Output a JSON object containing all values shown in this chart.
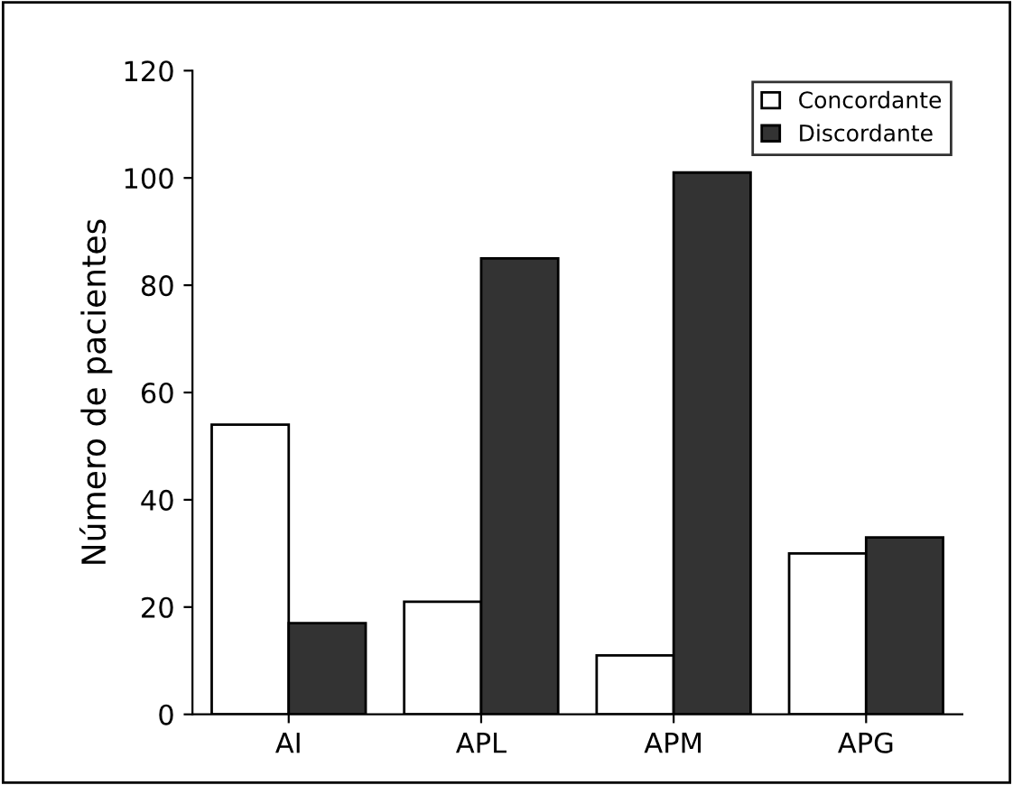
{
  "chart_data": {
    "type": "bar",
    "ylabel": "Número de pacientes",
    "categories": [
      "AI",
      "APL",
      "APM",
      "APG"
    ],
    "series": [
      {
        "name": "Concordante",
        "color": "#ffffff",
        "values": [
          54,
          21,
          11,
          30
        ]
      },
      {
        "name": "Discordante",
        "color": "#333333",
        "values": [
          17,
          85,
          101,
          33
        ]
      }
    ],
    "ylim": [
      0,
      120
    ],
    "yticks": [
      0,
      20,
      40,
      60,
      80,
      100,
      120
    ],
    "grid": false,
    "legend": "top right"
  }
}
